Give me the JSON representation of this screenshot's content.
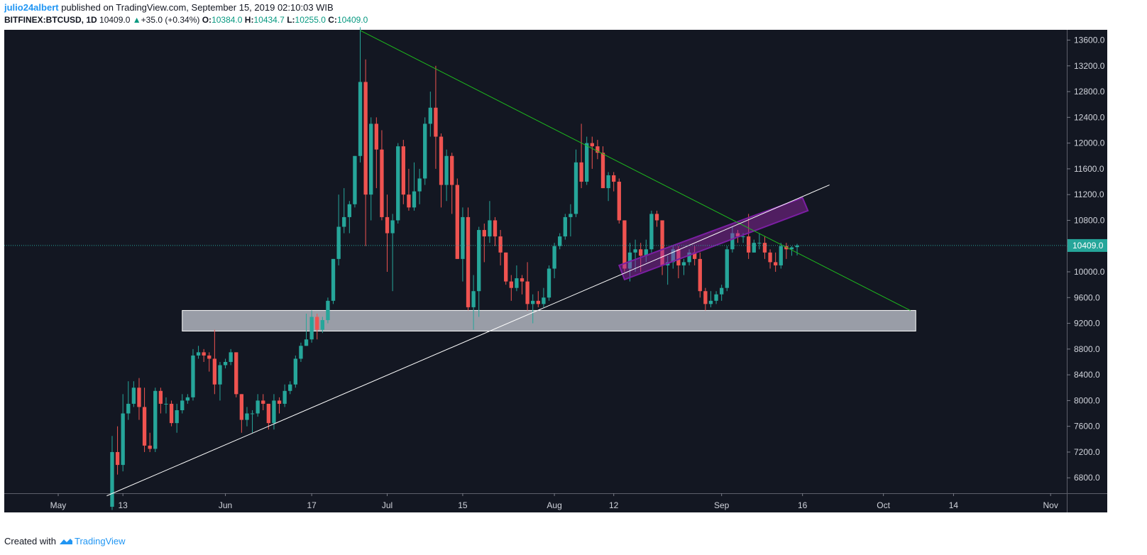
{
  "header": {
    "author": "julio24albert",
    "published": "published on TradingView.com, September 15, 2019 02:10:03 WIB",
    "symbol": "BITFINEX:BTCUSD, 1D",
    "last": "10409.0",
    "change": "+35.0 (+0.34%)",
    "o_label": "O:",
    "o_value": "10384.0",
    "h_label": "H:",
    "h_value": "10434.7",
    "l_label": "L:",
    "l_value": "10255.0",
    "c_label": "C:",
    "c_value": "10409.0"
  },
  "footer": {
    "created_with": "Created with",
    "brand": "TradingView"
  },
  "colors": {
    "background": "#131722",
    "up": "#26a69a",
    "down": "#ef5350",
    "trend_green": "#1db91d",
    "trend_white": "#ffffff",
    "channel": "#9c27b0",
    "support_zone": "#b2b5be",
    "price_line": "#26a69a"
  },
  "chart_data": {
    "type": "candlestick",
    "title": "BITFINEX:BTCUSD, 1D",
    "y_axis": {
      "ticks": [
        6800,
        7200,
        7600,
        8000,
        8400,
        8800,
        9200,
        9600,
        10000,
        10400,
        10800,
        11200,
        11600,
        12000,
        12400,
        12800,
        13200,
        13600
      ],
      "tick_labels": [
        "6800.0",
        "7200.0",
        "7600.0",
        "8000.0",
        "8400.0",
        "8800.0",
        "9200.0",
        "9600.0",
        "10000.0",
        "",
        "10800.0",
        "11200.0",
        "11600.0",
        "12000.0",
        "12400.0",
        "12800.0",
        "13200.0",
        "13600.0"
      ],
      "range": [
        6560,
        13760
      ],
      "side": "right"
    },
    "x_axis": {
      "range": [
        "2019-04-21",
        "2019-11-04"
      ],
      "ticks": [
        {
          "date": "2019-05-01",
          "label": "May"
        },
        {
          "date": "2019-05-13",
          "label": "13"
        },
        {
          "date": "2019-06-01",
          "label": "Jun"
        },
        {
          "date": "2019-06-17",
          "label": "17"
        },
        {
          "date": "2019-07-01",
          "label": "Jul"
        },
        {
          "date": "2019-07-15",
          "label": "15"
        },
        {
          "date": "2019-08-01",
          "label": "Aug"
        },
        {
          "date": "2019-08-12",
          "label": "12"
        },
        {
          "date": "2019-09-01",
          "label": "Sep"
        },
        {
          "date": "2019-09-16",
          "label": "16"
        },
        {
          "date": "2019-10-01",
          "label": "Oct"
        },
        {
          "date": "2019-10-14",
          "label": "14"
        },
        {
          "date": "2019-11-01",
          "label": "Nov"
        }
      ]
    },
    "last_price": {
      "value": 10409,
      "label": "10409.0"
    },
    "candles": [
      {
        "date": "2019-05-11",
        "o": 6350,
        "h": 7450,
        "l": 6300,
        "c": 7200
      },
      {
        "date": "2019-05-12",
        "o": 7200,
        "h": 7600,
        "l": 6850,
        "c": 7000
      },
      {
        "date": "2019-05-13",
        "o": 7000,
        "h": 8100,
        "l": 6900,
        "c": 7800
      },
      {
        "date": "2019-05-14",
        "o": 7800,
        "h": 8300,
        "l": 7700,
        "c": 7950
      },
      {
        "date": "2019-05-15",
        "o": 7950,
        "h": 8300,
        "l": 7900,
        "c": 8200
      },
      {
        "date": "2019-05-16",
        "o": 8200,
        "h": 8350,
        "l": 7700,
        "c": 7900
      },
      {
        "date": "2019-05-17",
        "o": 7900,
        "h": 8200,
        "l": 7200,
        "c": 7300
      },
      {
        "date": "2019-05-18",
        "o": 7300,
        "h": 7500,
        "l": 7200,
        "c": 7250
      },
      {
        "date": "2019-05-19",
        "o": 7250,
        "h": 8200,
        "l": 7200,
        "c": 8150
      },
      {
        "date": "2019-05-20",
        "o": 8150,
        "h": 8200,
        "l": 7800,
        "c": 7950
      },
      {
        "date": "2019-05-21",
        "o": 7950,
        "h": 8050,
        "l": 7800,
        "c": 7950
      },
      {
        "date": "2019-05-22",
        "o": 7950,
        "h": 8000,
        "l": 7600,
        "c": 7650
      },
      {
        "date": "2019-05-23",
        "o": 7650,
        "h": 7950,
        "l": 7500,
        "c": 7850
      },
      {
        "date": "2019-05-24",
        "o": 7850,
        "h": 8100,
        "l": 7800,
        "c": 8000
      },
      {
        "date": "2019-05-25",
        "o": 8000,
        "h": 8100,
        "l": 7950,
        "c": 8050
      },
      {
        "date": "2019-05-26",
        "o": 8050,
        "h": 8800,
        "l": 8000,
        "c": 8700
      },
      {
        "date": "2019-05-27",
        "o": 8700,
        "h": 8850,
        "l": 8650,
        "c": 8750
      },
      {
        "date": "2019-05-28",
        "o": 8750,
        "h": 8800,
        "l": 8600,
        "c": 8700
      },
      {
        "date": "2019-05-29",
        "o": 8700,
        "h": 8750,
        "l": 8450,
        "c": 8650
      },
      {
        "date": "2019-05-30",
        "o": 8650,
        "h": 9100,
        "l": 8100,
        "c": 8250
      },
      {
        "date": "2019-05-31",
        "o": 8250,
        "h": 8600,
        "l": 8000,
        "c": 8550
      },
      {
        "date": "2019-06-01",
        "o": 8550,
        "h": 8650,
        "l": 8500,
        "c": 8600
      },
      {
        "date": "2019-06-02",
        "o": 8600,
        "h": 8800,
        "l": 8550,
        "c": 8750
      },
      {
        "date": "2019-06-03",
        "o": 8750,
        "h": 8750,
        "l": 8050,
        "c": 8100
      },
      {
        "date": "2019-06-04",
        "o": 8100,
        "h": 8100,
        "l": 7500,
        "c": 7700
      },
      {
        "date": "2019-06-05",
        "o": 7700,
        "h": 7900,
        "l": 7600,
        "c": 7800
      },
      {
        "date": "2019-06-06",
        "o": 7800,
        "h": 7850,
        "l": 7500,
        "c": 7800
      },
      {
        "date": "2019-06-07",
        "o": 7800,
        "h": 8100,
        "l": 7750,
        "c": 8000
      },
      {
        "date": "2019-06-08",
        "o": 8000,
        "h": 8100,
        "l": 7850,
        "c": 7950
      },
      {
        "date": "2019-06-09",
        "o": 7950,
        "h": 7950,
        "l": 7550,
        "c": 7650
      },
      {
        "date": "2019-06-10",
        "o": 7650,
        "h": 8100,
        "l": 7550,
        "c": 8000
      },
      {
        "date": "2019-06-11",
        "o": 8000,
        "h": 8050,
        "l": 7800,
        "c": 7950
      },
      {
        "date": "2019-06-12",
        "o": 7950,
        "h": 8250,
        "l": 7900,
        "c": 8150
      },
      {
        "date": "2019-06-13",
        "o": 8150,
        "h": 8300,
        "l": 8100,
        "c": 8250
      },
      {
        "date": "2019-06-14",
        "o": 8250,
        "h": 8700,
        "l": 8200,
        "c": 8650
      },
      {
        "date": "2019-06-15",
        "o": 8650,
        "h": 8900,
        "l": 8600,
        "c": 8850
      },
      {
        "date": "2019-06-16",
        "o": 8850,
        "h": 9350,
        "l": 8850,
        "c": 8950
      },
      {
        "date": "2019-06-17",
        "o": 8950,
        "h": 9400,
        "l": 8900,
        "c": 9300
      },
      {
        "date": "2019-06-18",
        "o": 9300,
        "h": 9350,
        "l": 8950,
        "c": 9100
      },
      {
        "date": "2019-06-19",
        "o": 9100,
        "h": 9300,
        "l": 9050,
        "c": 9250
      },
      {
        "date": "2019-06-20",
        "o": 9250,
        "h": 9600,
        "l": 9200,
        "c": 9550
      },
      {
        "date": "2019-06-21",
        "o": 9550,
        "h": 10200,
        "l": 9500,
        "c": 10200
      },
      {
        "date": "2019-06-22",
        "o": 10200,
        "h": 11200,
        "l": 10100,
        "c": 10700
      },
      {
        "date": "2019-06-23",
        "o": 10700,
        "h": 11300,
        "l": 10600,
        "c": 10850
      },
      {
        "date": "2019-06-24",
        "o": 10850,
        "h": 11100,
        "l": 10600,
        "c": 11050
      },
      {
        "date": "2019-06-25",
        "o": 11050,
        "h": 11800,
        "l": 11000,
        "c": 11800
      },
      {
        "date": "2019-06-26",
        "o": 11800,
        "h": 13800,
        "l": 11700,
        "c": 12950
      },
      {
        "date": "2019-06-27",
        "o": 12950,
        "h": 13300,
        "l": 10400,
        "c": 11200
      },
      {
        "date": "2019-06-28",
        "o": 11200,
        "h": 12400,
        "l": 10800,
        "c": 12300
      },
      {
        "date": "2019-06-29",
        "o": 12300,
        "h": 12400,
        "l": 11300,
        "c": 11900
      },
      {
        "date": "2019-06-30",
        "o": 11900,
        "h": 12200,
        "l": 10800,
        "c": 10850
      },
      {
        "date": "2019-07-01",
        "o": 10850,
        "h": 11200,
        "l": 10000,
        "c": 10600
      },
      {
        "date": "2019-07-02",
        "o": 10600,
        "h": 10900,
        "l": 9700,
        "c": 10800
      },
      {
        "date": "2019-07-03",
        "o": 10800,
        "h": 12000,
        "l": 10750,
        "c": 11950
      },
      {
        "date": "2019-07-04",
        "o": 11950,
        "h": 12050,
        "l": 11050,
        "c": 11200
      },
      {
        "date": "2019-07-05",
        "o": 11200,
        "h": 11600,
        "l": 10950,
        "c": 11000
      },
      {
        "date": "2019-07-06",
        "o": 11000,
        "h": 11700,
        "l": 10950,
        "c": 11250
      },
      {
        "date": "2019-07-07",
        "o": 11250,
        "h": 11600,
        "l": 11050,
        "c": 11450
      },
      {
        "date": "2019-07-08",
        "o": 11450,
        "h": 12400,
        "l": 11350,
        "c": 12300
      },
      {
        "date": "2019-07-09",
        "o": 12300,
        "h": 12800,
        "l": 12100,
        "c": 12550
      },
      {
        "date": "2019-07-10",
        "o": 12550,
        "h": 13200,
        "l": 11600,
        "c": 12100
      },
      {
        "date": "2019-07-11",
        "o": 12100,
        "h": 12150,
        "l": 11000,
        "c": 11350
      },
      {
        "date": "2019-07-12",
        "o": 11350,
        "h": 11900,
        "l": 11100,
        "c": 11800
      },
      {
        "date": "2019-07-13",
        "o": 11800,
        "h": 11850,
        "l": 10900,
        "c": 11350
      },
      {
        "date": "2019-07-14",
        "o": 11350,
        "h": 11450,
        "l": 10200,
        "c": 10200
      },
      {
        "date": "2019-07-15",
        "o": 10200,
        "h": 11000,
        "l": 9850,
        "c": 10850
      },
      {
        "date": "2019-07-16",
        "o": 10850,
        "h": 11000,
        "l": 9400,
        "c": 9450
      },
      {
        "date": "2019-07-17",
        "o": 9450,
        "h": 9950,
        "l": 9100,
        "c": 9700
      },
      {
        "date": "2019-07-18",
        "o": 9700,
        "h": 10700,
        "l": 9300,
        "c": 10650
      },
      {
        "date": "2019-07-19",
        "o": 10650,
        "h": 10750,
        "l": 10150,
        "c": 10550
      },
      {
        "date": "2019-07-20",
        "o": 10550,
        "h": 11100,
        "l": 10450,
        "c": 10800
      },
      {
        "date": "2019-07-21",
        "o": 10800,
        "h": 10850,
        "l": 10400,
        "c": 10550
      },
      {
        "date": "2019-07-22",
        "o": 10550,
        "h": 10650,
        "l": 10100,
        "c": 10300
      },
      {
        "date": "2019-07-23",
        "o": 10300,
        "h": 10300,
        "l": 9800,
        "c": 9850
      },
      {
        "date": "2019-07-24",
        "o": 9850,
        "h": 9950,
        "l": 9550,
        "c": 9750
      },
      {
        "date": "2019-07-25",
        "o": 9750,
        "h": 10100,
        "l": 9700,
        "c": 9900
      },
      {
        "date": "2019-07-26",
        "o": 9900,
        "h": 9950,
        "l": 9650,
        "c": 9850
      },
      {
        "date": "2019-07-27",
        "o": 9850,
        "h": 10150,
        "l": 9400,
        "c": 9500
      },
      {
        "date": "2019-07-28",
        "o": 9500,
        "h": 9650,
        "l": 9200,
        "c": 9550
      },
      {
        "date": "2019-07-29",
        "o": 9550,
        "h": 9700,
        "l": 9450,
        "c": 9500
      },
      {
        "date": "2019-07-30",
        "o": 9500,
        "h": 9750,
        "l": 9450,
        "c": 9600
      },
      {
        "date": "2019-07-31",
        "o": 9600,
        "h": 10100,
        "l": 9550,
        "c": 10050
      },
      {
        "date": "2019-08-01",
        "o": 10050,
        "h": 10450,
        "l": 9900,
        "c": 10400
      },
      {
        "date": "2019-08-02",
        "o": 10400,
        "h": 10600,
        "l": 10350,
        "c": 10550
      },
      {
        "date": "2019-08-03",
        "o": 10550,
        "h": 10900,
        "l": 10500,
        "c": 10850
      },
      {
        "date": "2019-08-04",
        "o": 10850,
        "h": 11050,
        "l": 10550,
        "c": 10900
      },
      {
        "date": "2019-08-05",
        "o": 10900,
        "h": 11900,
        "l": 10850,
        "c": 11700
      },
      {
        "date": "2019-08-06",
        "o": 11700,
        "h": 12300,
        "l": 11300,
        "c": 11400
      },
      {
        "date": "2019-08-07",
        "o": 11400,
        "h": 12100,
        "l": 11350,
        "c": 12000
      },
      {
        "date": "2019-08-08",
        "o": 12000,
        "h": 12100,
        "l": 11600,
        "c": 11950
      },
      {
        "date": "2019-08-09",
        "o": 11950,
        "h": 12050,
        "l": 11750,
        "c": 11850
      },
      {
        "date": "2019-08-10",
        "o": 11850,
        "h": 11950,
        "l": 11300,
        "c": 11300
      },
      {
        "date": "2019-08-11",
        "o": 11300,
        "h": 11550,
        "l": 11100,
        "c": 11500
      },
      {
        "date": "2019-08-12",
        "o": 11500,
        "h": 11550,
        "l": 11250,
        "c": 11400
      },
      {
        "date": "2019-08-13",
        "o": 11400,
        "h": 11450,
        "l": 10750,
        "c": 10800
      },
      {
        "date": "2019-08-14",
        "o": 10800,
        "h": 10800,
        "l": 10000,
        "c": 10050
      },
      {
        "date": "2019-08-15",
        "o": 10050,
        "h": 10450,
        "l": 9850,
        "c": 10300
      },
      {
        "date": "2019-08-16",
        "o": 10300,
        "h": 10500,
        "l": 10000,
        "c": 10350
      },
      {
        "date": "2019-08-17",
        "o": 10350,
        "h": 10450,
        "l": 10000,
        "c": 10250
      },
      {
        "date": "2019-08-18",
        "o": 10250,
        "h": 10500,
        "l": 10150,
        "c": 10350
      },
      {
        "date": "2019-08-19",
        "o": 10350,
        "h": 10950,
        "l": 10300,
        "c": 10900
      },
      {
        "date": "2019-08-20",
        "o": 10900,
        "h": 10950,
        "l": 10700,
        "c": 10800
      },
      {
        "date": "2019-08-21",
        "o": 10800,
        "h": 10800,
        "l": 9950,
        "c": 10100
      },
      {
        "date": "2019-08-22",
        "o": 10100,
        "h": 10250,
        "l": 9800,
        "c": 10150
      },
      {
        "date": "2019-08-23",
        "o": 10150,
        "h": 10400,
        "l": 10050,
        "c": 10350
      },
      {
        "date": "2019-08-24",
        "o": 10350,
        "h": 10400,
        "l": 9900,
        "c": 10100
      },
      {
        "date": "2019-08-25",
        "o": 10100,
        "h": 10200,
        "l": 9950,
        "c": 10150
      },
      {
        "date": "2019-08-26",
        "o": 10150,
        "h": 10350,
        "l": 10100,
        "c": 10300
      },
      {
        "date": "2019-08-27",
        "o": 10300,
        "h": 10400,
        "l": 10100,
        "c": 10200
      },
      {
        "date": "2019-08-28",
        "o": 10200,
        "h": 10300,
        "l": 9600,
        "c": 9700
      },
      {
        "date": "2019-08-29",
        "o": 9700,
        "h": 9750,
        "l": 9400,
        "c": 9500
      },
      {
        "date": "2019-08-30",
        "o": 9500,
        "h": 9700,
        "l": 9450,
        "c": 9550
      },
      {
        "date": "2019-08-31",
        "o": 9550,
        "h": 9700,
        "l": 9500,
        "c": 9650
      },
      {
        "date": "2019-09-01",
        "o": 9650,
        "h": 9800,
        "l": 9550,
        "c": 9750
      },
      {
        "date": "2019-09-02",
        "o": 9750,
        "h": 10400,
        "l": 9700,
        "c": 10350
      },
      {
        "date": "2019-09-03",
        "o": 10350,
        "h": 10700,
        "l": 10300,
        "c": 10600
      },
      {
        "date": "2019-09-04",
        "o": 10600,
        "h": 10650,
        "l": 10450,
        "c": 10550
      },
      {
        "date": "2019-09-05",
        "o": 10550,
        "h": 10600,
        "l": 10450,
        "c": 10550
      },
      {
        "date": "2019-09-06",
        "o": 10550,
        "h": 10900,
        "l": 10200,
        "c": 10300
      },
      {
        "date": "2019-09-07",
        "o": 10300,
        "h": 10500,
        "l": 10300,
        "c": 10450
      },
      {
        "date": "2019-09-08",
        "o": 10450,
        "h": 10600,
        "l": 10350,
        "c": 10450
      },
      {
        "date": "2019-09-09",
        "o": 10450,
        "h": 10550,
        "l": 10200,
        "c": 10300
      },
      {
        "date": "2019-09-10",
        "o": 10300,
        "h": 10350,
        "l": 10050,
        "c": 10150
      },
      {
        "date": "2019-09-11",
        "o": 10150,
        "h": 10300,
        "l": 10000,
        "c": 10100
      },
      {
        "date": "2019-09-12",
        "o": 10100,
        "h": 10450,
        "l": 10050,
        "c": 10400
      },
      {
        "date": "2019-09-13",
        "o": 10400,
        "h": 10450,
        "l": 10200,
        "c": 10350
      },
      {
        "date": "2019-09-14",
        "o": 10350,
        "h": 10400,
        "l": 10250,
        "c": 10380
      },
      {
        "date": "2019-09-15",
        "o": 10384,
        "h": 10434.7,
        "l": 10255,
        "c": 10409
      }
    ],
    "drawings": {
      "descending_trendline": {
        "from": {
          "date": "2019-06-26",
          "price": 13750
        },
        "to": {
          "date": "2019-10-06",
          "price": 9400
        }
      },
      "ascending_trendline": {
        "from": {
          "date": "2019-05-10",
          "price": 6520
        },
        "to": {
          "date": "2019-09-21",
          "price": 11350
        }
      },
      "support_zone": {
        "from_date": "2019-05-24",
        "to_date": "2019-10-07",
        "low": 9080,
        "high": 9400
      },
      "rising_channel": {
        "corners": [
          {
            "date": "2019-08-13",
            "price": 10100
          },
          {
            "date": "2019-09-16",
            "price": 11150
          },
          {
            "date": "2019-09-17",
            "price": 10950
          },
          {
            "date": "2019-08-14",
            "price": 9880
          }
        ]
      }
    }
  }
}
